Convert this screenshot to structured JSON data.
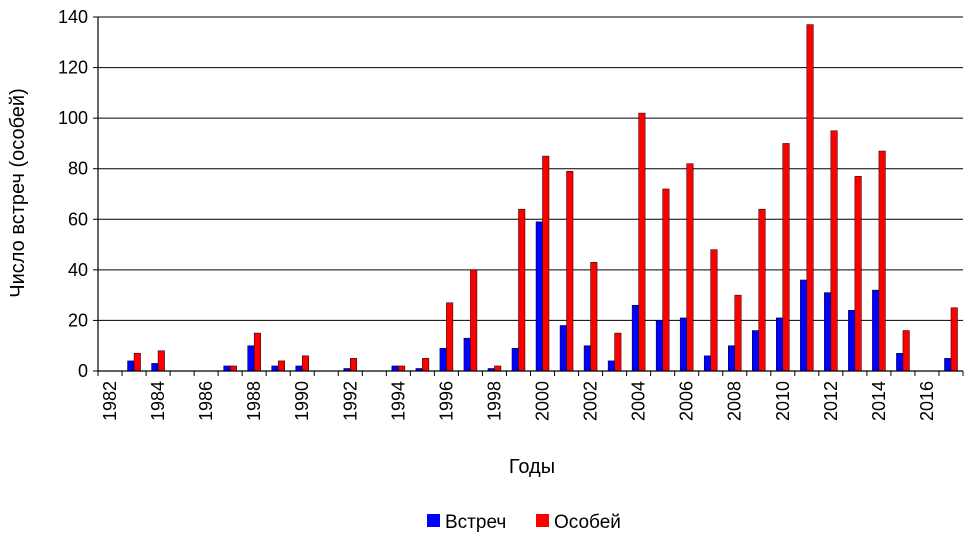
{
  "chart_data": {
    "type": "bar",
    "title": "",
    "xlabel": "Годы",
    "ylabel": "Число встреч (особей)",
    "ylim": [
      0,
      140
    ],
    "yticks": [
      0,
      20,
      40,
      60,
      80,
      100,
      120,
      140
    ],
    "grid": "horizontal",
    "legend_position": "bottom-center",
    "categories": [
      1982,
      1983,
      1984,
      1985,
      1986,
      1987,
      1988,
      1989,
      1990,
      1991,
      1992,
      1993,
      1994,
      1995,
      1996,
      1997,
      1998,
      1999,
      2000,
      2001,
      2002,
      2003,
      2004,
      2005,
      2006,
      2007,
      2008,
      2009,
      2010,
      2011,
      2012,
      2013,
      2014,
      2015,
      2016,
      2017
    ],
    "xtick_labels": [
      "1982",
      "1984",
      "1986",
      "1988",
      "1990",
      "1992",
      "1994",
      "1996",
      "1998",
      "2000",
      "2002",
      "2004",
      "2006",
      "2008",
      "2010",
      "2012",
      "2014",
      "2016"
    ],
    "series": [
      {
        "name": "Встреч",
        "color": "#0000ff",
        "values": [
          0,
          4,
          3,
          0,
          0,
          2,
          10,
          2,
          2,
          0,
          1,
          0,
          2,
          1,
          9,
          13,
          1,
          9,
          59,
          18,
          10,
          4,
          26,
          20,
          21,
          6,
          10,
          16,
          21,
          36,
          31,
          24,
          32,
          7,
          0,
          5
        ]
      },
      {
        "name": "Особей",
        "color": "#ff0000",
        "values": [
          0,
          7,
          8,
          0,
          0,
          2,
          15,
          4,
          6,
          0,
          5,
          0,
          2,
          5,
          27,
          40,
          2,
          64,
          85,
          79,
          43,
          15,
          102,
          72,
          82,
          48,
          30,
          64,
          90,
          137,
          95,
          77,
          87,
          16,
          0,
          25
        ]
      }
    ]
  }
}
